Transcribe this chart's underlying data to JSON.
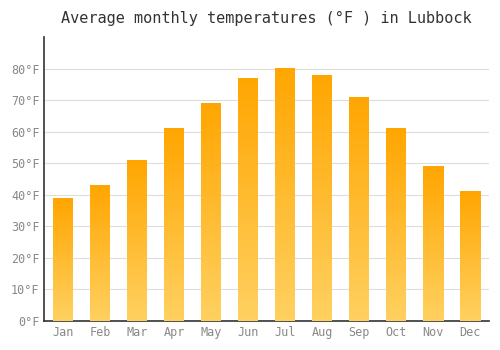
{
  "title": "Average monthly temperatures (°F ) in Lubbock",
  "months": [
    "Jan",
    "Feb",
    "Mar",
    "Apr",
    "May",
    "Jun",
    "Jul",
    "Aug",
    "Sep",
    "Oct",
    "Nov",
    "Dec"
  ],
  "values": [
    39,
    43,
    51,
    61,
    69,
    77,
    80,
    78,
    71,
    61,
    49,
    41
  ],
  "bar_color_bottom": "#FFD060",
  "bar_color_top": "#FFA500",
  "ylim": [
    0,
    90
  ],
  "yticks": [
    0,
    10,
    20,
    30,
    40,
    50,
    60,
    70,
    80
  ],
  "ytick_labels": [
    "0°F",
    "10°F",
    "20°F",
    "30°F",
    "40°F",
    "50°F",
    "60°F",
    "70°F",
    "80°F"
  ],
  "background_color": "#FFFFFF",
  "grid_color": "#DDDDDD",
  "title_fontsize": 11,
  "tick_fontsize": 8.5,
  "font_family": "monospace"
}
